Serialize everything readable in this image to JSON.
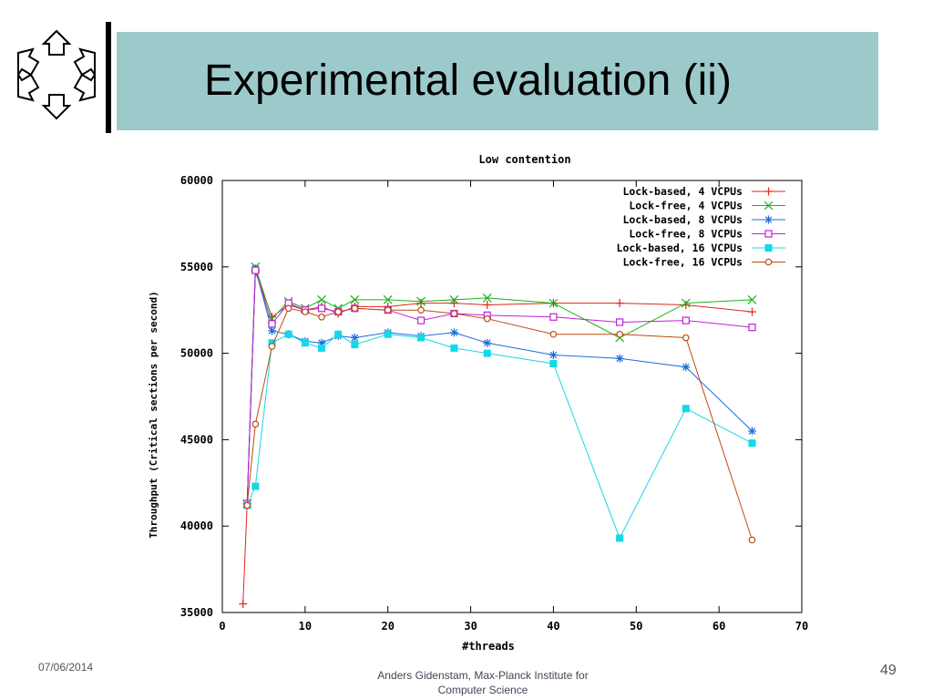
{
  "slide": {
    "title": "Experimental evaluation (ii)",
    "footer_date": "07/06/2014",
    "footer_center_line1": "Anders Gidenstam, Max-Planck Institute for",
    "footer_center_line2": "Computer Science",
    "page_number": "49"
  },
  "chart_data": {
    "type": "line",
    "title": "Low contention",
    "xlabel": "#threads",
    "ylabel": "Throughput (Critical sections per second)",
    "xlim": [
      0,
      70
    ],
    "ylim": [
      35000,
      60000
    ],
    "xticks": [
      0,
      10,
      20,
      30,
      40,
      50,
      60,
      70
    ],
    "yticks": [
      35000,
      40000,
      45000,
      50000,
      55000,
      60000
    ],
    "grid": false,
    "legend_position": "top-right",
    "series": [
      {
        "name": "Lock-based, 4 VCPUs",
        "color": "#e0261a",
        "marker": "plus",
        "x": [
          2.5,
          3,
          4,
          6,
          8,
          10,
          12,
          14,
          16,
          20,
          24,
          28,
          32,
          40,
          48,
          56,
          64
        ],
        "y": [
          35500,
          41300,
          54700,
          52100,
          52800,
          52500,
          52700,
          52300,
          52700,
          52700,
          52900,
          52900,
          52800,
          52900,
          52900,
          52800,
          52400
        ]
      },
      {
        "name": "Lock-free, 4 VCPUs",
        "color": "#19b119",
        "marker": "cross",
        "x": [
          3,
          4,
          6,
          8,
          10,
          12,
          14,
          16,
          20,
          24,
          28,
          32,
          40,
          48,
          56,
          64
        ],
        "y": [
          41300,
          55000,
          52000,
          53000,
          52600,
          53100,
          52600,
          53100,
          53100,
          53000,
          53100,
          53200,
          52900,
          50900,
          52900,
          53100
        ]
      },
      {
        "name": "Lock-based, 8 VCPUs",
        "color": "#1a6ed8",
        "marker": "star",
        "x": [
          3,
          4,
          6,
          8,
          10,
          12,
          14,
          16,
          20,
          24,
          28,
          32,
          40,
          48,
          56,
          64
        ],
        "y": [
          41300,
          54900,
          51300,
          51100,
          50700,
          50600,
          51000,
          50900,
          51200,
          51000,
          51200,
          50600,
          49900,
          49700,
          49200,
          45500
        ]
      },
      {
        "name": "Lock-free, 8 VCPUs",
        "color": "#c020d8",
        "marker": "square-open",
        "x": [
          3,
          4,
          6,
          8,
          10,
          12,
          14,
          16,
          20,
          24,
          28,
          32,
          40,
          48,
          56,
          64
        ],
        "y": [
          41300,
          54800,
          51700,
          52900,
          52500,
          52600,
          52400,
          52600,
          52500,
          51900,
          52300,
          52200,
          52100,
          51800,
          51900,
          51500
        ]
      },
      {
        "name": "Lock-based, 16 VCPUs",
        "color": "#13d8e8",
        "marker": "square-filled",
        "x": [
          3,
          4,
          6,
          8,
          10,
          12,
          14,
          16,
          20,
          24,
          28,
          32,
          40,
          48,
          56,
          64
        ],
        "y": [
          41200,
          42300,
          50600,
          51100,
          50600,
          50300,
          51100,
          50500,
          51100,
          50900,
          50300,
          50000,
          49400,
          39300,
          46800,
          44800
        ]
      },
      {
        "name": "Lock-free, 16 VCPUs",
        "color": "#bd4a12",
        "marker": "circle",
        "x": [
          3,
          4,
          6,
          8,
          10,
          12,
          14,
          16,
          20,
          24,
          28,
          32,
          40,
          48,
          56,
          64
        ],
        "y": [
          41200,
          45900,
          50400,
          52600,
          52400,
          52100,
          52400,
          52600,
          52500,
          52500,
          52300,
          52000,
          51100,
          51100,
          50900,
          39200
        ]
      }
    ]
  }
}
